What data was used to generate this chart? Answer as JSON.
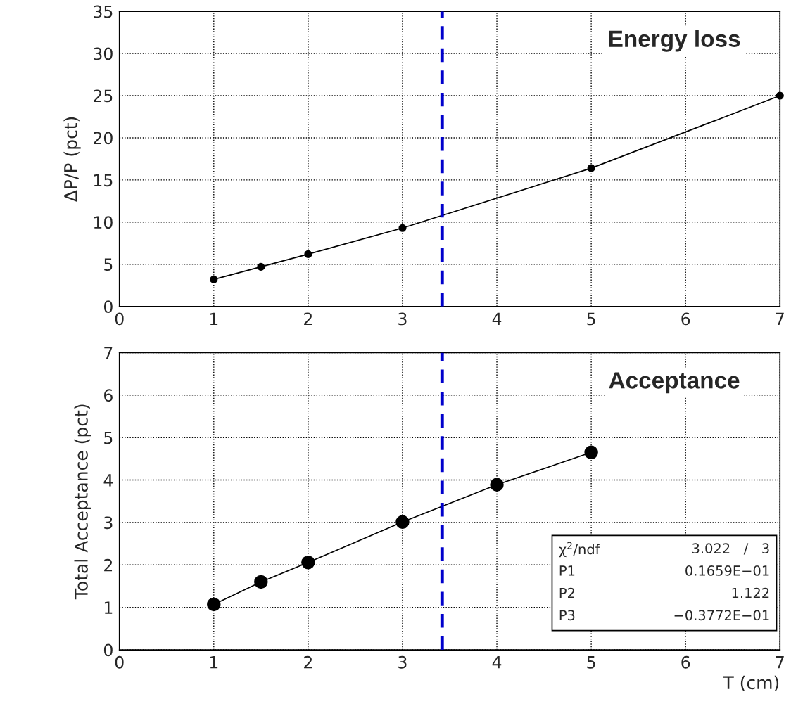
{
  "chart_data": [
    {
      "type": "line",
      "title": "Energy loss",
      "ylabel": "ΔP/P (pct)",
      "x": [
        1,
        1.5,
        2,
        3,
        5,
        7
      ],
      "series": [
        {
          "color": "#000000",
          "values": [
            3.2,
            4.7,
            6.2,
            9.3,
            16.4,
            25.0
          ]
        }
      ],
      "marker": "circle",
      "line_style": "solid",
      "xlim": [
        0,
        7
      ],
      "xticks": [
        0,
        1,
        2,
        3,
        4,
        5,
        6,
        7
      ],
      "ylim": [
        0,
        35
      ],
      "yticks": [
        0,
        5,
        10,
        15,
        20,
        25,
        30,
        35
      ],
      "grid": true,
      "legend": false,
      "ref_lines": [
        {
          "axis": "x",
          "value": 3.42,
          "color": "#0000cc",
          "line_style": "dashed"
        }
      ]
    },
    {
      "type": "line",
      "title": "Acceptance",
      "xlabel": "T (cm)",
      "ylabel": "Total Acceptance (pct)",
      "x": [
        1,
        1.5,
        2,
        3,
        4,
        5
      ],
      "series": [
        {
          "color": "#000000",
          "values": [
            1.07,
            1.6,
            2.06,
            3.01,
            3.89,
            4.65
          ]
        }
      ],
      "marker": "circle",
      "line_style": "solid",
      "xlim": [
        0,
        7
      ],
      "xticks": [
        0,
        1,
        2,
        3,
        4,
        5,
        6,
        7
      ],
      "ylim": [
        0,
        7
      ],
      "yticks": [
        0,
        1,
        2,
        3,
        4,
        5,
        6,
        7
      ],
      "grid": true,
      "legend": false,
      "ref_lines": [
        {
          "axis": "x",
          "value": 3.42,
          "color": "#0000cc",
          "line_style": "dashed"
        }
      ],
      "annotations": [
        "χ$^{2}$/ndf",
        "3.022   /   3",
        "P1",
        "0.1659E−01",
        "P2",
        "1.122",
        "P3",
        "−0.3772E−01"
      ]
    }
  ]
}
